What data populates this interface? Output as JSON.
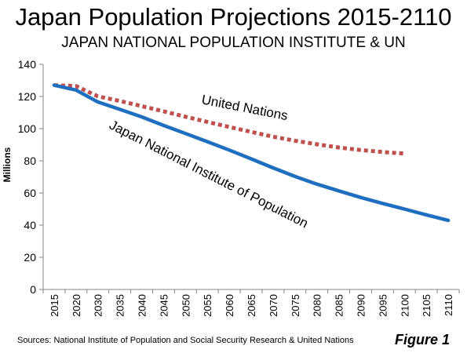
{
  "title": "Japan Population Projections 2015-2110",
  "subtitle": "JAPAN NATIONAL POPULATION INSTITUTE & UN",
  "source": "Sources:  National Institute of Population and Social Security Research & United Nations",
  "figure_label": "Figure 1",
  "chart_data": {
    "type": "line",
    "ylabel": "Millions",
    "xlabel": "",
    "ylim": [
      0,
      140
    ],
    "yticks": [
      0,
      20,
      40,
      60,
      80,
      100,
      120,
      140
    ],
    "categories": [
      "2015",
      "2020",
      "2030",
      "2035",
      "2040",
      "2045",
      "2050",
      "2055",
      "2060",
      "2065",
      "2070",
      "2075",
      "2080",
      "2085",
      "2090",
      "2095",
      "2100",
      "2105",
      "2110"
    ],
    "grid": false,
    "legend": "inline-labels",
    "series": [
      {
        "name": "Japan National Institute of Population",
        "style": "solid",
        "color": "#1f6fc0",
        "values": [
          127,
          124,
          116.6,
          112,
          107.3,
          102,
          97,
          91.9,
          86.7,
          81.2,
          75.6,
          70.3,
          65.5,
          61.3,
          57.2,
          53.5,
          50.0,
          46.4,
          43.0
        ]
      },
      {
        "name": "United Nations",
        "style": "dotted",
        "color": "#c0504d",
        "values": [
          127,
          126.5,
          120.1,
          117.2,
          114.0,
          110.8,
          107.4,
          104.2,
          101.0,
          98.0,
          95.0,
          92.5,
          90.3,
          88.3,
          86.7,
          85.5,
          84.5,
          null,
          null
        ]
      }
    ]
  }
}
